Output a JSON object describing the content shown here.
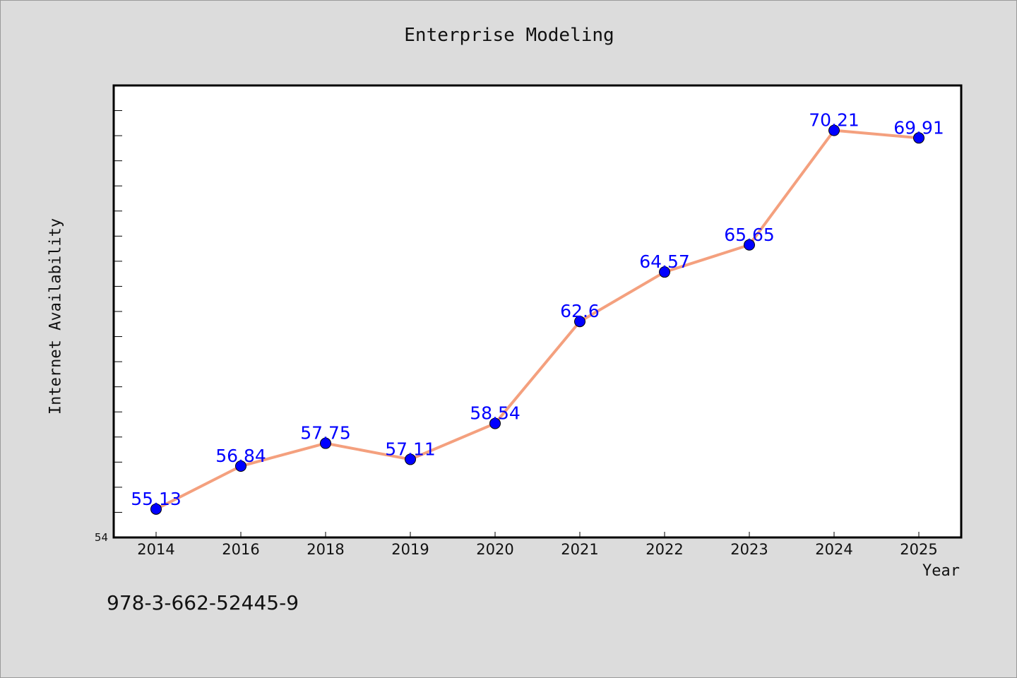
{
  "title": "Enterprise Modeling",
  "footer": "978-3-662-52445-9",
  "chart_data": {
    "type": "line",
    "title": "Enterprise Modeling",
    "xlabel": "Year",
    "ylabel": "Internet Availability",
    "categories": [
      "2014",
      "2016",
      "2018",
      "2019",
      "2020",
      "2021",
      "2022",
      "2023",
      "2024",
      "2025"
    ],
    "series": [
      {
        "values": [
          55.13,
          56.84,
          57.75,
          57.11,
          58.54,
          62.6,
          64.57,
          65.65,
          70.21,
          69.91
        ],
        "data_labels": [
          "55.13",
          "56.84",
          "57.75",
          "57.11",
          "58.54",
          "62.6",
          "64.57",
          "65.65",
          "70.21",
          "69.91"
        ]
      }
    ],
    "ylim": [
      54,
      72
    ],
    "y_tick_label": "54",
    "grid": false,
    "legend": "none",
    "colors": {
      "line": "#f4a07e",
      "marker": "#0000ff",
      "data_label": "#0000ff",
      "plot_background": "#ffffff",
      "figure_background": "#dcdcdc"
    }
  }
}
